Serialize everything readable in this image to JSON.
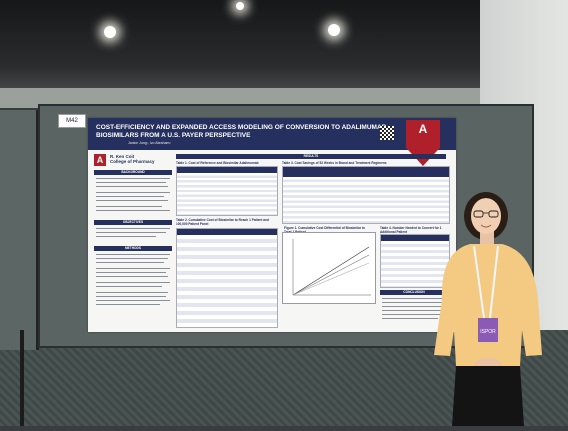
{
  "poster": {
    "board_number": "M42",
    "title": "COST-EFFICIENCY AND EXPANDED ACCESS MODELING OF CONVERSION TO ADALIMUMAB BIOSIMILARS FROM A U.S. PAYER PERSPECTIVE",
    "authors": "Janice Jung¹, Ivo Abraham¹",
    "institution_logo_letter": "A",
    "college_name_line1": "R. Ken Coit",
    "college_name_line2": "College of Pharmacy",
    "sections": {
      "background": "BACKGROUND",
      "objectives": "OBJECTIVES",
      "methods": "METHODS",
      "results": "RESULTS",
      "conclusion": "CONCLUSION"
    },
    "table1_caption": "Table 1. Cost of Reference and Biosimilar Adalimumab",
    "table2_caption": "Table 2. Cumulative Cost of Biosimilar to Reach 1 Patient and 100,000 Patient Panel",
    "table3_caption": "Table 3. Cost Savings of 52 Weeks in Brand and Treatment Regimens",
    "figure1_caption": "Figure 1. Cumulative Cost Differential of Biosimilar to Treat 1 Patient",
    "table4_caption": "Table 4. Number Needed to Convert for 1 Additional Patient"
  },
  "badge": {
    "text": "ISPOR"
  },
  "colors": {
    "poster_header": "#26305f",
    "logo_red": "#b0202b",
    "shirt": "#f4c982"
  }
}
